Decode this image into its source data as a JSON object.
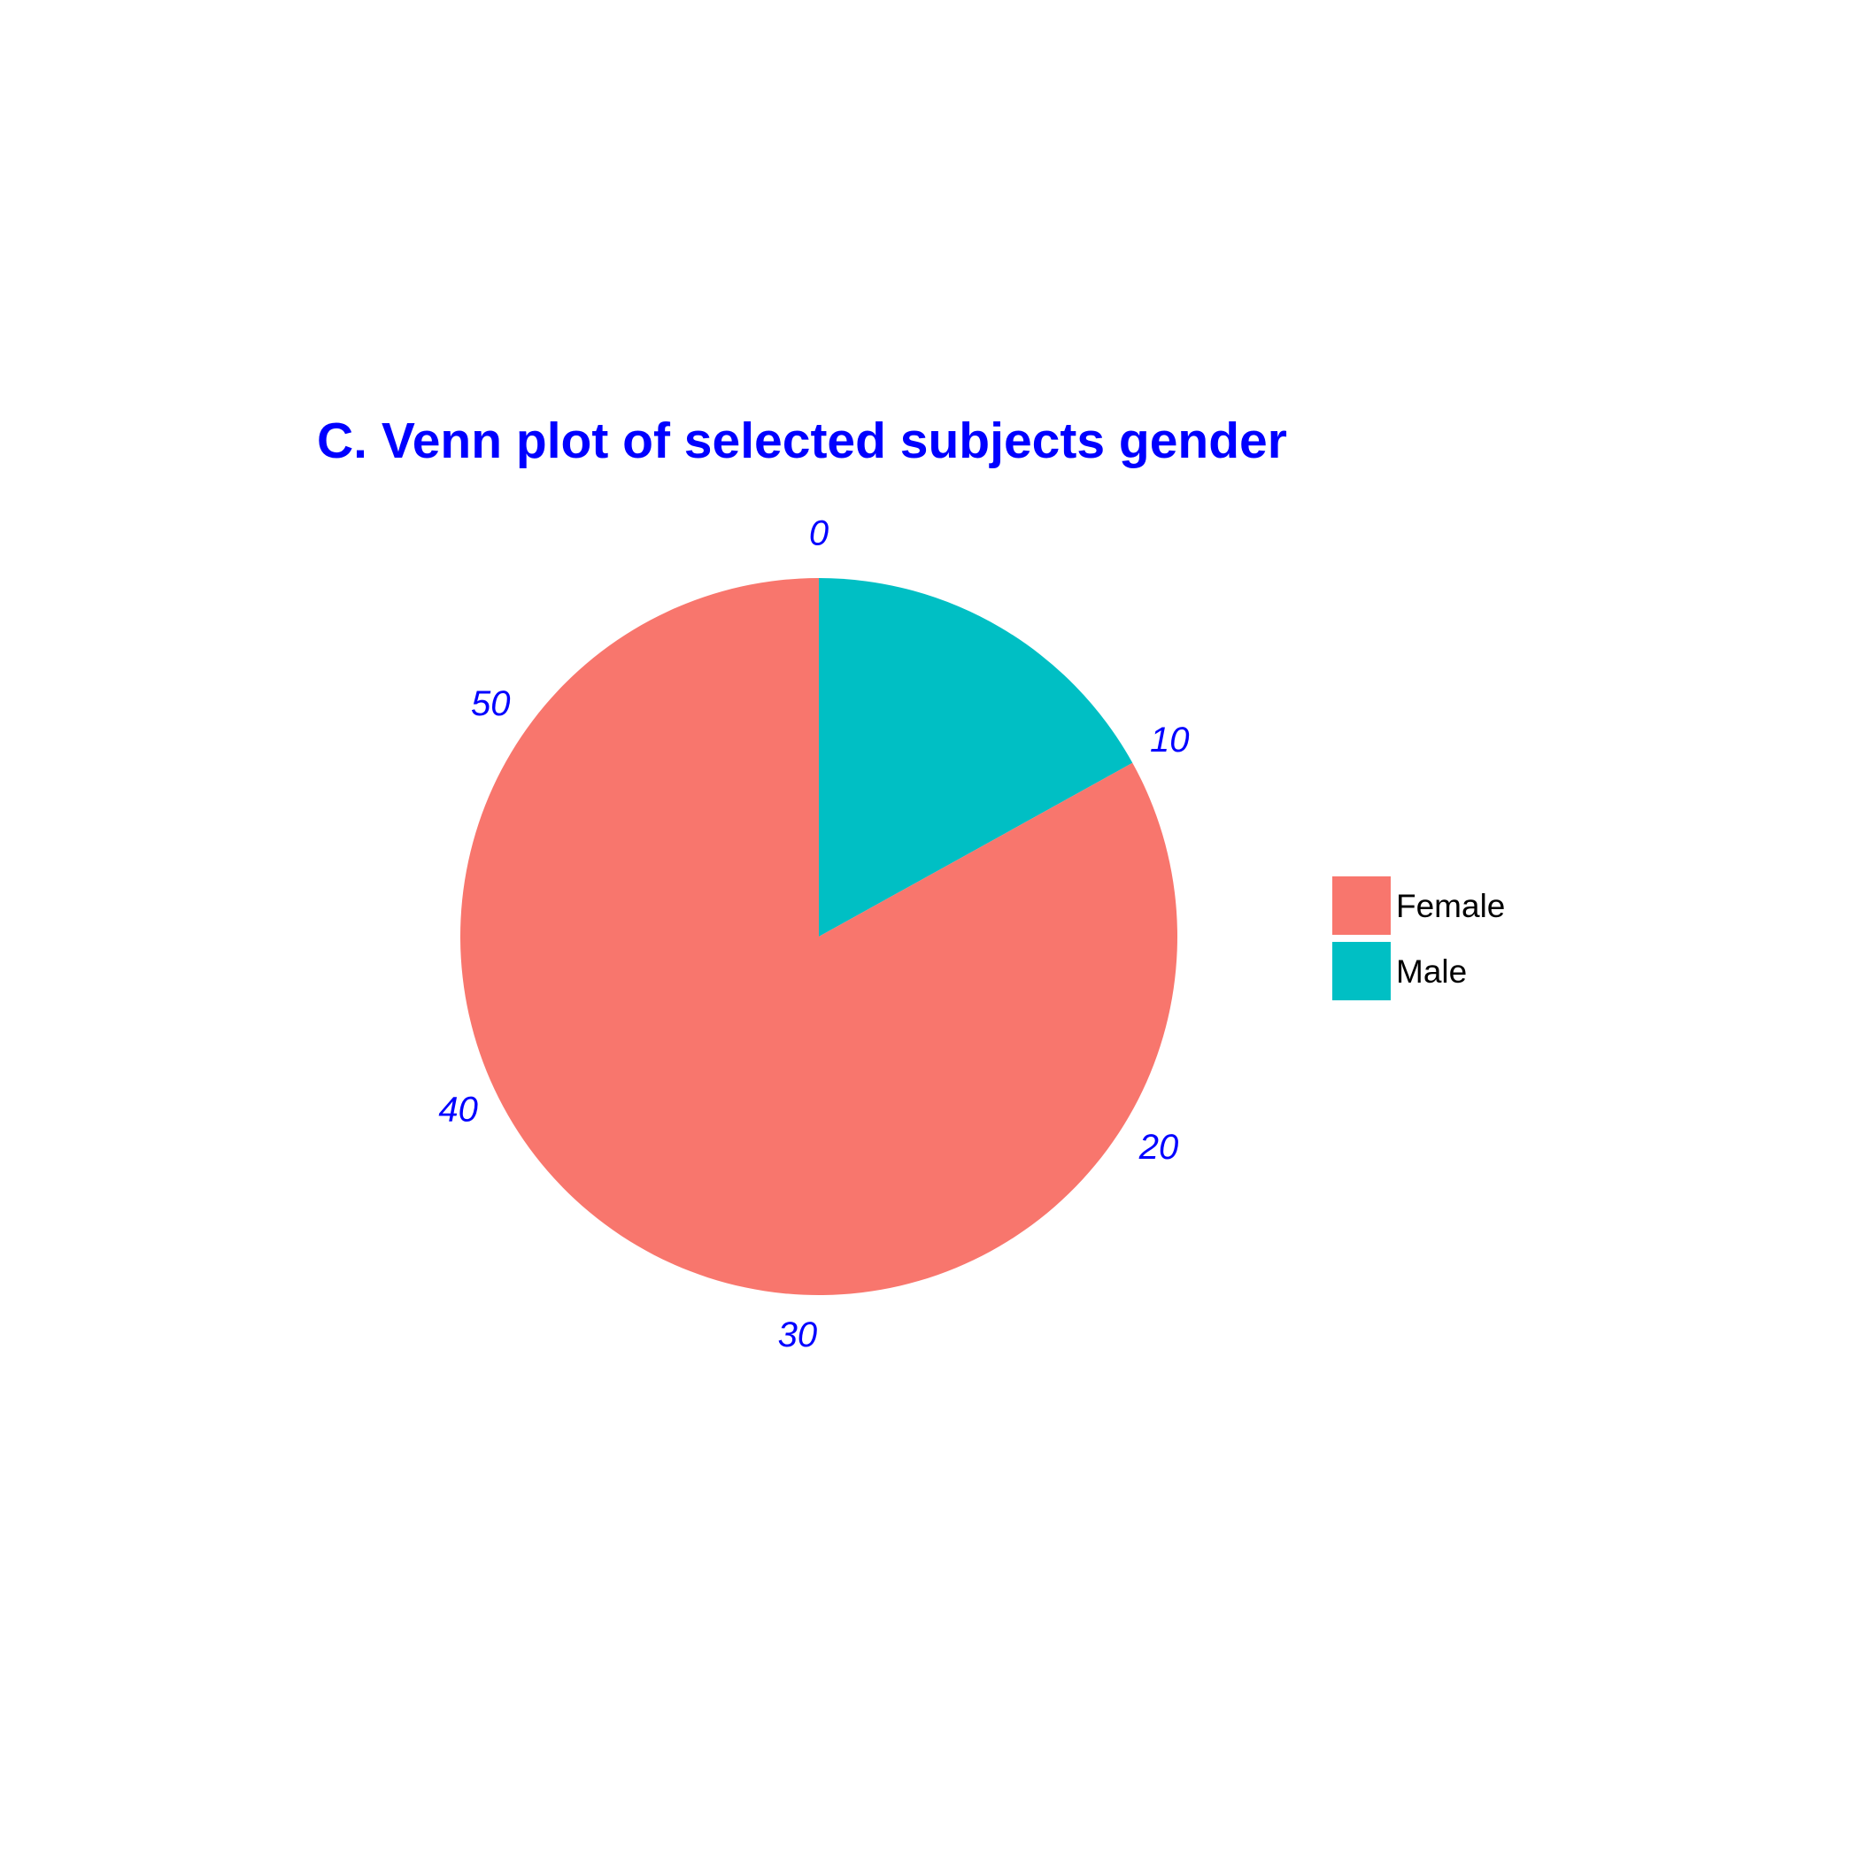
{
  "chart_data": {
    "type": "pie",
    "title": "C. Venn plot of selected subjects gender",
    "categories": [
      "Female",
      "Male"
    ],
    "values": [
      49,
      10
    ],
    "colors": {
      "Female": "#F8766D",
      "Male": "#00BFC4",
      "text": "#0000FF"
    },
    "angular_axis": {
      "range": [
        0,
        59
      ],
      "ticks": [
        0,
        10,
        20,
        30,
        40,
        50
      ],
      "tick_labels": [
        "0",
        "10",
        "20",
        "30",
        "40",
        "50"
      ],
      "direction": "clockwise",
      "start": "top"
    },
    "legend": {
      "placement": "right",
      "entries": [
        {
          "label": "Female",
          "color": "#F8766D"
        },
        {
          "label": "Male",
          "color": "#00BFC4"
        }
      ]
    }
  }
}
